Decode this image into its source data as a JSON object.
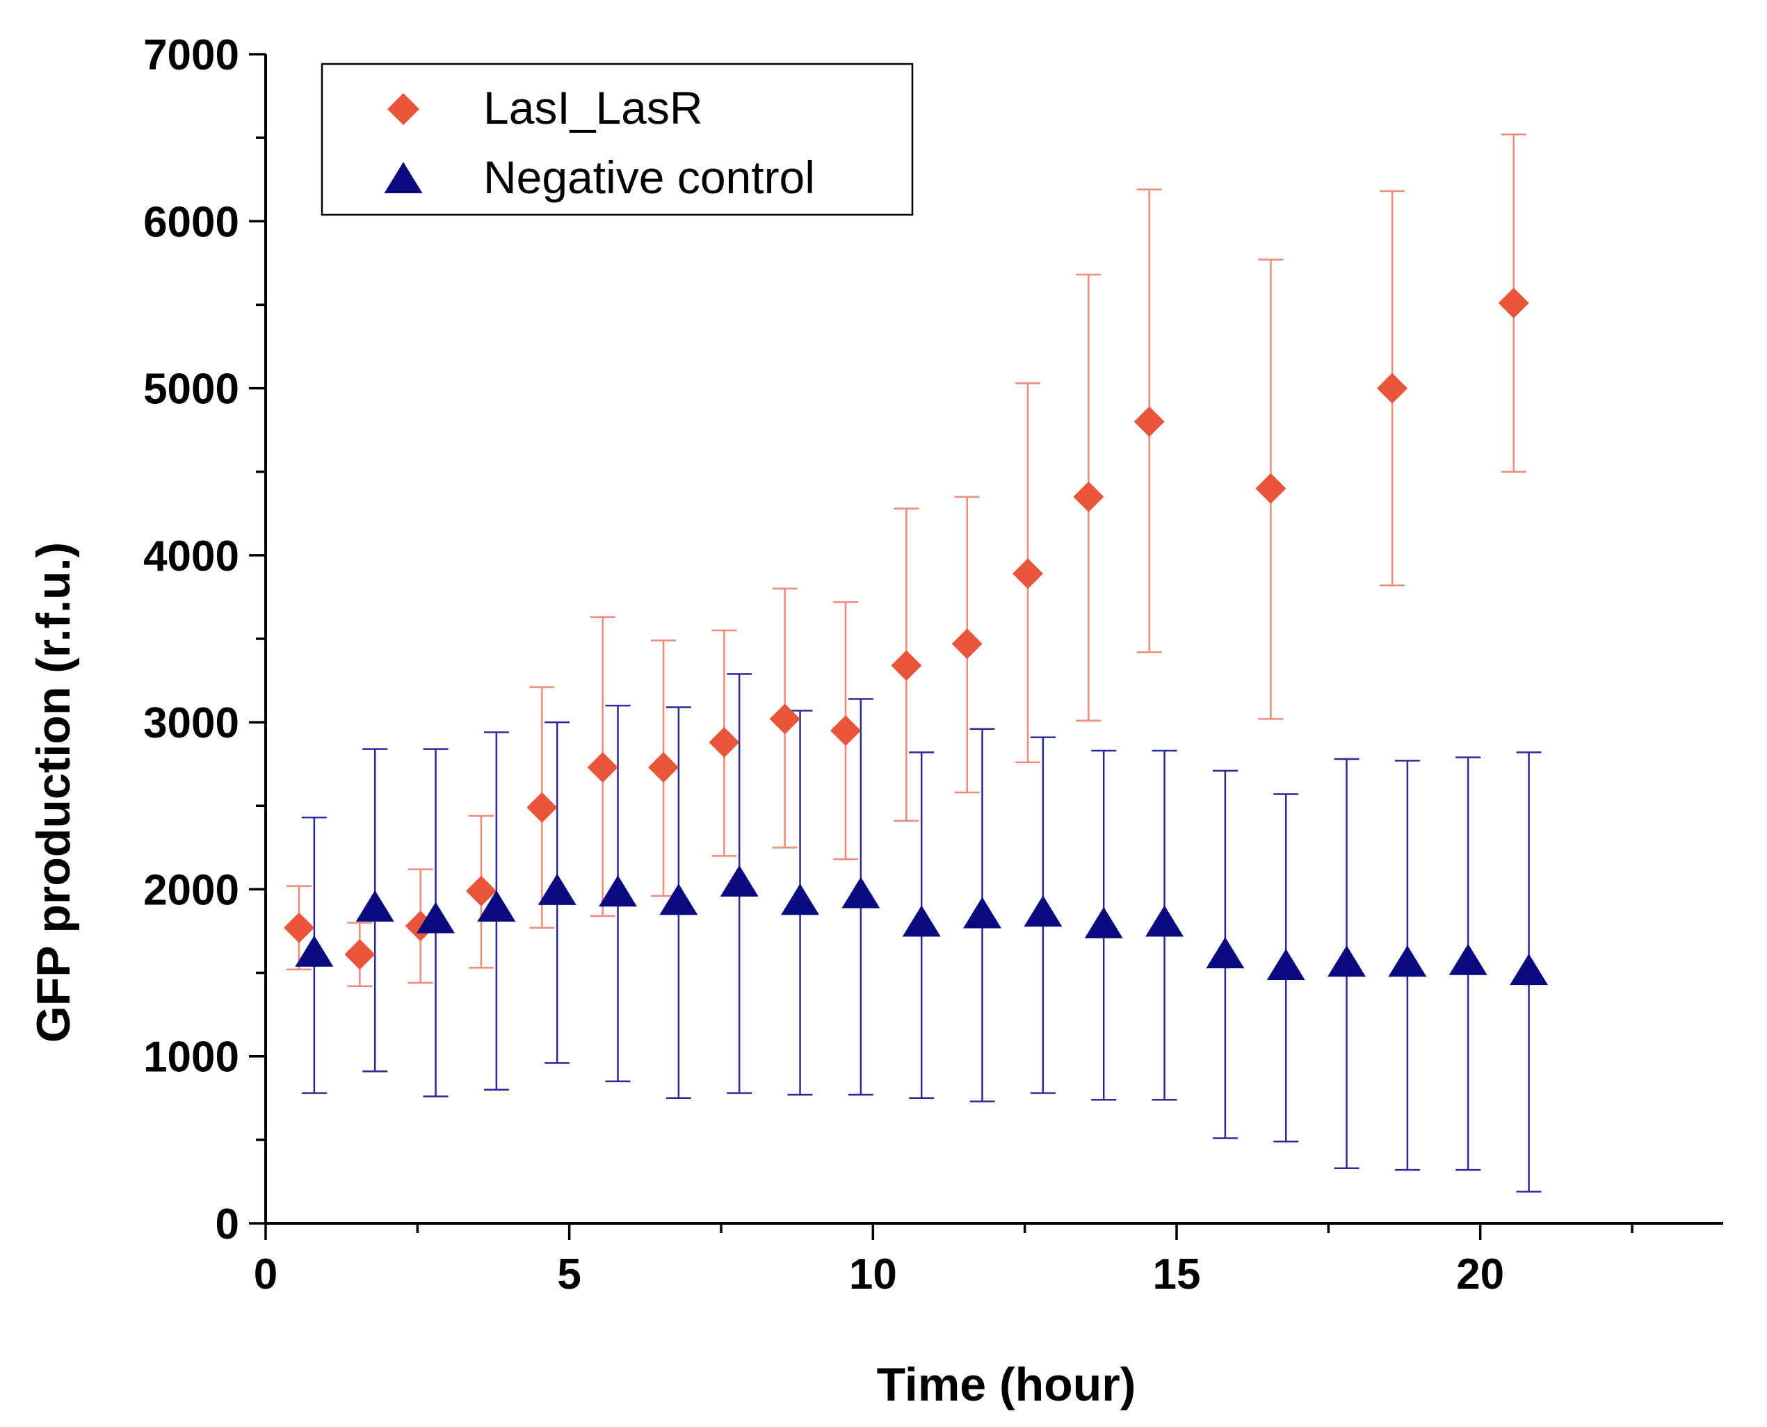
{
  "chart_data": {
    "type": "scatter",
    "title": "",
    "xlabel": "Time (hour)",
    "ylabel": "GFP production (r.f.u.)",
    "xlim": [
      0,
      24
    ],
    "ylim": [
      0,
      7000
    ],
    "x_ticks": [
      0,
      5,
      10,
      15,
      20
    ],
    "y_ticks": [
      0,
      1000,
      2000,
      3000,
      4000,
      5000,
      6000,
      7000
    ],
    "grid": false,
    "legend_position": "top-left",
    "series": [
      {
        "name": "LasI_LasR",
        "marker": "diamond",
        "color": "#e8553a",
        "error_color": "#f08a78",
        "x": [
          0.55,
          1.55,
          2.55,
          3.55,
          4.55,
          5.55,
          6.55,
          7.55,
          8.55,
          9.55,
          10.55,
          11.55,
          12.55,
          13.55,
          14.55,
          16.55,
          18.55,
          20.55
        ],
        "y": [
          1770,
          1610,
          1780,
          1990,
          2490,
          2730,
          2730,
          2880,
          3020,
          2950,
          3340,
          3470,
          3890,
          4350,
          4800,
          4400,
          5000,
          5510
        ],
        "err_low": [
          1520,
          1420,
          1440,
          1530,
          1770,
          1840,
          1960,
          2200,
          2250,
          2180,
          2410,
          2580,
          2760,
          3010,
          3420,
          3020,
          3820,
          4500
        ],
        "err_high": [
          2020,
          1800,
          2120,
          2440,
          3210,
          3630,
          3490,
          3550,
          3800,
          3720,
          4280,
          4350,
          5030,
          5680,
          6190,
          5770,
          6180,
          6520
        ]
      },
      {
        "name": "Negative control",
        "marker": "triangle",
        "color": "#0a0a80",
        "error_color": "#2a2a9a",
        "x": [
          0.8,
          1.8,
          2.8,
          3.8,
          4.8,
          5.8,
          6.8,
          7.8,
          8.8,
          9.8,
          10.8,
          11.8,
          12.8,
          13.8,
          14.8,
          15.8,
          16.8,
          17.8,
          18.8,
          19.8,
          20.8
        ],
        "y": [
          1620,
          1890,
          1820,
          1890,
          1990,
          1980,
          1930,
          2040,
          1930,
          1970,
          1800,
          1850,
          1860,
          1790,
          1800,
          1610,
          1540,
          1560,
          1560,
          1570,
          1510
        ],
        "err_low": [
          780,
          910,
          760,
          800,
          960,
          850,
          750,
          780,
          770,
          770,
          750,
          730,
          780,
          740,
          740,
          510,
          490,
          330,
          320,
          320,
          190
        ],
        "err_high": [
          2430,
          2840,
          2840,
          2940,
          3000,
          3100,
          3090,
          3290,
          3070,
          3140,
          2820,
          2960,
          2910,
          2830,
          2830,
          2710,
          2570,
          2780,
          2770,
          2790,
          2820
        ]
      }
    ]
  }
}
